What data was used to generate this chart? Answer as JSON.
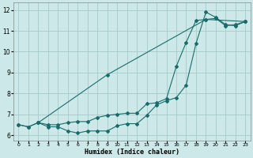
{
  "xlabel": "Humidex (Indice chaleur)",
  "bg_color": "#cce8e8",
  "grid_color": "#aacece",
  "line_color": "#1a6b6b",
  "xlim": [
    -0.5,
    23.5
  ],
  "ylim": [
    5.75,
    12.35
  ],
  "x_ticks": [
    0,
    1,
    2,
    3,
    4,
    5,
    6,
    7,
    8,
    9,
    10,
    11,
    12,
    13,
    14,
    15,
    16,
    17,
    18,
    19,
    20,
    21,
    22,
    23
  ],
  "y_ticks": [
    6,
    7,
    8,
    9,
    10,
    11,
    12
  ],
  "line1_x": [
    0,
    1,
    2,
    3,
    4,
    5,
    6,
    7,
    8,
    9,
    10,
    11,
    12,
    13,
    14,
    15,
    16,
    17,
    18,
    19,
    20,
    21,
    22,
    23
  ],
  "line1_y": [
    6.5,
    6.4,
    6.6,
    6.4,
    6.4,
    6.2,
    6.1,
    6.2,
    6.2,
    6.2,
    6.45,
    6.55,
    6.55,
    6.95,
    7.45,
    7.65,
    7.8,
    8.4,
    10.4,
    11.9,
    11.65,
    11.3,
    11.25,
    11.45
  ],
  "line2_x": [
    0,
    1,
    2,
    3,
    4,
    5,
    6,
    7,
    8,
    9,
    10,
    11,
    12,
    13,
    14,
    15,
    16,
    17,
    18,
    19,
    20,
    21,
    22,
    23
  ],
  "line2_y": [
    6.5,
    6.4,
    6.6,
    6.5,
    6.5,
    6.6,
    6.65,
    6.65,
    6.85,
    6.95,
    7.0,
    7.05,
    7.05,
    7.5,
    7.55,
    7.75,
    9.3,
    10.45,
    11.5,
    11.55,
    11.6,
    11.25,
    11.3,
    11.45
  ],
  "line3_x": [
    2,
    9,
    19,
    23
  ],
  "line3_y": [
    6.6,
    8.9,
    11.55,
    11.45
  ]
}
